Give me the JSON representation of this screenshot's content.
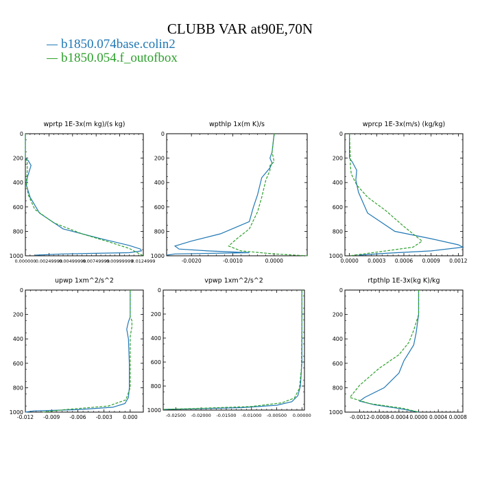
{
  "title": "CLUBB VAR at90E,70N",
  "legend": [
    {
      "name": "b1850.074base.colin2",
      "color": "#1f77b4"
    },
    {
      "name": "b1850.054.f_outofbox",
      "color": "#2ca02c"
    }
  ],
  "chart_data": [
    {
      "type": "line",
      "title": "wprtp  1E-3x(m kg)/(s kg)",
      "xlim": [
        0,
        0.0125
      ],
      "ylim": [
        0,
        1000
      ],
      "y_reversed": true,
      "yticks": [
        0,
        200,
        400,
        600,
        800,
        1000
      ],
      "xticks": [
        0,
        0.0025,
        0.005,
        0.0075,
        0.01,
        0.0125
      ],
      "xticklabels": [
        "0.000000",
        "0.00249999",
        "0.00499999",
        "0.00749999",
        "0.00999999",
        "0.0124999"
      ],
      "series": [
        {
          "name": "b1850.074base.colin2",
          "x": [
            0,
            0,
            0.0003,
            0.0006,
            0.0004,
            0.0002,
            0.0001,
            0.0005,
            0.0015,
            0.004,
            0.008,
            0.011,
            0.0122,
            0.0123,
            0.011,
            0.004,
            0.001
          ],
          "y": [
            0,
            200,
            220,
            260,
            310,
            360,
            420,
            520,
            650,
            780,
            860,
            915,
            945,
            960,
            975,
            985,
            995
          ]
        },
        {
          "name": "b1850.054.f_outofbox",
          "x": [
            0,
            0,
            0.0002,
            0.0002,
            0.0001,
            0.0003,
            0.001,
            0.003,
            0.006,
            0.009,
            0.011,
            0.0125
          ],
          "y": [
            0,
            200,
            230,
            300,
            400,
            500,
            620,
            730,
            820,
            890,
            940,
            1000
          ]
        }
      ]
    },
    {
      "type": "line",
      "title": "wpthlp  1x(m K)/s",
      "xlim": [
        -0.0026,
        0.0008
      ],
      "ylim": [
        0,
        1000
      ],
      "y_reversed": true,
      "yticks": [
        0,
        200,
        400,
        600,
        800,
        1000
      ],
      "xticks": [
        -0.002,
        -0.001,
        0
      ],
      "xticklabels": [
        "-0.0020",
        "-0.0010",
        "0.0000"
      ],
      "series": [
        {
          "name": "b1850.074base.colin2",
          "x": [
            0,
            -5e-05,
            -0.0001,
            -5e-05,
            -0.0001,
            -0.0003,
            -0.0004,
            -0.0005,
            -0.0006,
            -0.0013,
            -0.002,
            -0.0024,
            -0.0023,
            -0.0016,
            -0.0006,
            -0.0024,
            -0.0026
          ],
          "y": [
            0,
            150,
            200,
            240,
            280,
            360,
            500,
            600,
            720,
            820,
            880,
            920,
            945,
            960,
            975,
            985,
            995
          ]
        },
        {
          "name": "b1850.054.f_outofbox",
          "x": [
            0,
            -5e-05,
            0,
            -0.0001,
            -0.0001,
            -0.0002,
            -0.0003,
            -0.0004,
            -0.0006,
            -0.0009,
            -0.0011,
            -0.0008,
            0,
            0.0008
          ],
          "y": [
            0,
            150,
            230,
            260,
            300,
            380,
            520,
            640,
            780,
            860,
            920,
            960,
            985,
            1000
          ]
        }
      ]
    },
    {
      "type": "line",
      "title": "wprcp  1E-3x(m/s) (kg/kg)",
      "xlim": [
        -5e-05,
        0.00125
      ],
      "ylim": [
        0,
        1000
      ],
      "y_reversed": true,
      "yticks": [
        0,
        200,
        400,
        600,
        800,
        1000
      ],
      "xticks": [
        0,
        0.0003,
        0.0006,
        0.0009,
        0.0012
      ],
      "xticklabels": [
        "0.0000",
        "0.0003",
        "0.0006",
        "0.0009",
        "0.0012"
      ],
      "series": [
        {
          "name": "b1850.074base.colin2",
          "x": [
            0,
            0,
            3e-05,
            8e-05,
            7e-05,
            0.0001,
            0.0002,
            0.0005,
            0.0009,
            0.0012,
            0.00125,
            0.0009,
            0.0004,
            0.0001
          ],
          "y": [
            0,
            200,
            230,
            300,
            380,
            480,
            650,
            800,
            860,
            910,
            930,
            960,
            980,
            995
          ]
        },
        {
          "name": "b1850.054.f_outofbox",
          "x": [
            0,
            1e-05,
            1e-05,
            2e-05,
            8e-05,
            0.0002,
            0.0004,
            0.0006,
            0.0008,
            0.0007,
            0.0003,
            0
          ],
          "y": [
            0,
            200,
            260,
            330,
            420,
            520,
            630,
            760,
            880,
            930,
            970,
            1000
          ]
        }
      ]
    },
    {
      "type": "line",
      "title": "upwp   1xm^2/s^2",
      "xlim": [
        -0.012,
        0.0015
      ],
      "ylim": [
        0,
        1000
      ],
      "y_reversed": true,
      "yticks": [
        0,
        200,
        400,
        600,
        800,
        1000
      ],
      "xticks": [
        -0.012,
        -0.009,
        -0.006,
        -0.003,
        0
      ],
      "xticklabels": [
        "-0.012",
        "-0.009",
        "-0.006",
        "-0.003",
        "0.000"
      ],
      "series": [
        {
          "name": "b1850.074base.colin2",
          "x": [
            0,
            0,
            -0.0002,
            -0.0004,
            -0.0002,
            -0.0001,
            -0.0001,
            -0.0002,
            -0.0006,
            -0.002,
            -0.006,
            -0.011,
            -0.012
          ],
          "y": [
            0,
            220,
            260,
            320,
            400,
            600,
            800,
            880,
            930,
            960,
            980,
            990,
            1000
          ]
        },
        {
          "name": "b1850.054.f_outofbox",
          "x": [
            0,
            0,
            0.0002,
            0.0002,
            0,
            0,
            0,
            -0.0005,
            -0.0025,
            -0.0075,
            -0.01
          ],
          "y": [
            0,
            220,
            250,
            300,
            380,
            600,
            800,
            900,
            950,
            980,
            1000
          ]
        }
      ]
    },
    {
      "type": "line",
      "title": "vpwp   1xm^2/s^2",
      "xlim": [
        -0.0275,
        0.0005
      ],
      "ylim": [
        0,
        1000
      ],
      "y_reversed": true,
      "yticks": [
        0,
        200,
        400,
        600,
        800,
        1000
      ],
      "xticks": [
        -0.025,
        -0.02,
        -0.015,
        -0.01,
        -0.005,
        0
      ],
      "xticklabels": [
        "-0.02500",
        "-0.02000",
        "-0.01500",
        "-0.01000",
        "-0.00500",
        "0.00000"
      ],
      "series": [
        {
          "name": "b1850.074base.colin2",
          "x": [
            0,
            0,
            0,
            -0.0003,
            -0.0008,
            -0.002,
            -0.005,
            -0.012,
            -0.022,
            -0.0275
          ],
          "y": [
            0,
            200,
            600,
            800,
            880,
            930,
            960,
            980,
            990,
            995
          ]
        },
        {
          "name": "b1850.054.f_outofbox",
          "x": [
            0,
            0,
            -0.0001,
            -0.0005,
            -0.0015,
            -0.004,
            -0.01,
            -0.02,
            -0.0275
          ],
          "y": [
            0,
            250,
            650,
            820,
            900,
            940,
            970,
            985,
            995
          ]
        }
      ]
    },
    {
      "type": "line",
      "title": "rtpthlp  1E-3x(kg K)/kg",
      "xlim": [
        -0.0015,
        0.0009
      ],
      "ylim": [
        0,
        1000
      ],
      "y_reversed": true,
      "yticks": [
        0,
        200,
        400,
        600,
        800,
        1000
      ],
      "xticks": [
        -0.0012,
        -0.0008,
        -0.0004,
        0,
        0.0004,
        0.0008
      ],
      "xticklabels": [
        "-0.0012",
        "-0.0008",
        "-0.0004",
        "0.0000",
        "0.0004",
        "0.0008"
      ],
      "series": [
        {
          "name": "b1850.074base.colin2",
          "x": [
            0,
            0,
            -5e-05,
            -0.0001,
            -0.0003,
            -0.0004,
            -0.0007,
            -0.0011,
            -0.0012,
            -0.0009,
            -0.0004,
            0
          ],
          "y": [
            0,
            200,
            350,
            450,
            580,
            680,
            800,
            880,
            910,
            940,
            970,
            1000
          ]
        },
        {
          "name": "b1850.054.f_outofbox",
          "x": [
            0,
            0,
            -0.0001,
            -0.0002,
            -0.0004,
            -0.0008,
            -0.0012,
            -0.0014,
            -0.001,
            -0.0003,
            0
          ],
          "y": [
            0,
            200,
            330,
            430,
            530,
            640,
            780,
            880,
            930,
            970,
            1000
          ]
        }
      ]
    }
  ]
}
